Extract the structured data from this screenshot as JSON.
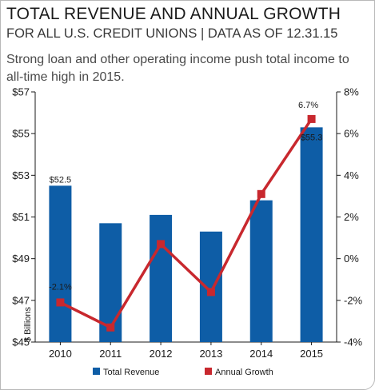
{
  "title": "TOTAL REVENUE AND ANNUAL GROWTH",
  "subtitle": "FOR ALL U.S. CREDIT UNIONS | DATA AS OF 12.31.15",
  "description": "Strong loan and other operating income push total income to all-time high in 2015.",
  "chart_data": {
    "type": "bar",
    "categories": [
      "2010",
      "2011",
      "2012",
      "2013",
      "2014",
      "2015"
    ],
    "series": [
      {
        "name": "Total Revenue",
        "kind": "bar",
        "axis": "left",
        "color": "#0e5da6",
        "values": [
          52.5,
          50.7,
          51.1,
          50.3,
          51.8,
          55.3
        ]
      },
      {
        "name": "Annual Growth",
        "kind": "line",
        "axis": "right",
        "color": "#c8282e",
        "values": [
          -2.1,
          -3.3,
          0.7,
          -1.6,
          3.1,
          6.7
        ]
      }
    ],
    "y_left": {
      "label": "$ Billions",
      "ylim": [
        45,
        57
      ],
      "ticks": [
        "$45",
        "$47",
        "$49",
        "$51",
        "$53",
        "$55",
        "$57"
      ]
    },
    "y_right": {
      "label": "",
      "ylim": [
        -4,
        8
      ],
      "ticks": [
        "-4%",
        "-2%",
        "0%",
        "2%",
        "4%",
        "6%",
        "8%"
      ]
    },
    "data_labels": [
      {
        "series": "Total Revenue",
        "category": "2010",
        "text": "$52.5"
      },
      {
        "series": "Total Revenue",
        "category": "2015",
        "text": "$55.3"
      },
      {
        "series": "Annual Growth",
        "category": "2010",
        "text": "-2.1%"
      },
      {
        "series": "Annual Growth",
        "category": "2015",
        "text": "6.7%"
      }
    ],
    "legend_position": "bottom",
    "grid": false
  }
}
